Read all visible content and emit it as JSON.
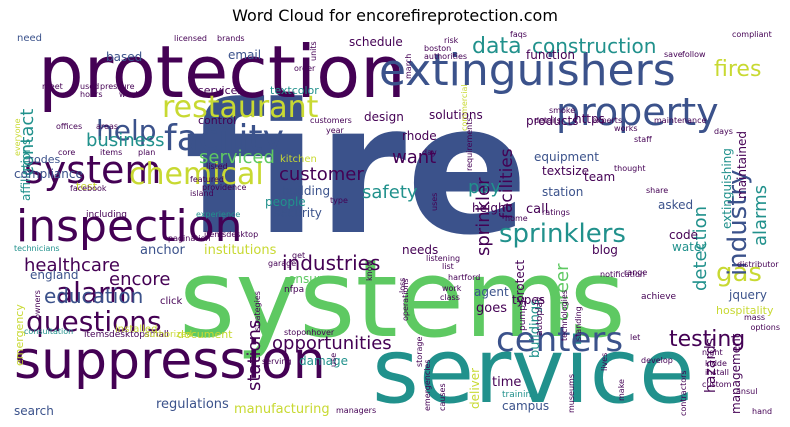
{
  "title": "Word Cloud for encorefireprotection.com",
  "palette": {
    "purple": "#440154",
    "indigo": "#3b528b",
    "teal": "#21918c",
    "green": "#5ec962",
    "yellow": "#c8d932"
  },
  "words": {
    "fire": "fire",
    "systems": "systems",
    "service": "service",
    "protection": "protection",
    "suppression": "suppression",
    "extinguishers": "extinguishers",
    "inspection": "inspection",
    "system": "system",
    "restaurant": "restaurant",
    "property": "property",
    "facility": "facility",
    "chemical": "chemical",
    "centers": "centers",
    "questions": "questions",
    "sprinklers": "sprinklers",
    "alarm": "alarm",
    "help": "help",
    "construction": "construction",
    "data": "data",
    "fires": "fires",
    "industry": "industry",
    "gas": "gas",
    "testing": "testing",
    "opportunities": "opportunities",
    "industries": "industries",
    "education": "education",
    "healthcare": "healthcare",
    "encore": "encore",
    "business": "business",
    "contact": "contact",
    "customer": "customer",
    "serviced": "serviced",
    "safety": "safety",
    "pay": "pay",
    "want": "want",
    "sprinkler": "sprinkler",
    "facilities": "facilities",
    "career": "career",
    "detection": "detection",
    "alarms": "alarms",
    "extinguishing": "extinguishing",
    "maintained": "maintained",
    "stations": "stations",
    "regulations": "regulations",
    "manufacturing": "manufacturing",
    "search": "search",
    "time": "time",
    "campus": "campus",
    "training": "training",
    "hazards": "hazards",
    "management": "management",
    "water": "water",
    "hospitality": "hospitality",
    "jquery": "jquery",
    "code": "code",
    "blog": "blog",
    "asked": "asked",
    "call": "call",
    "station": "station",
    "team": "team",
    "equipment": "equipment",
    "textsize": "textsize",
    "height": "height",
    "needs": "needs",
    "agent": "agent",
    "goes": "goes",
    "types": "types",
    "ensure": "ensure",
    "damage": "damage",
    "document": "document",
    "anchor": "anchor",
    "institutions": "institutions",
    "security": "security",
    "building": "building",
    "people": "people",
    "kitchen": "kitchen",
    "codes": "codes",
    "compliance": "compliance",
    "test": "test",
    "england": "england",
    "affiliations": "affiliations",
    "need": "need",
    "based": "based",
    "email": "email",
    "services": "services",
    "textcolor": "textcolor",
    "control": "control",
    "schedule": "schedule",
    "design": "design",
    "solutions": "solutions",
    "rhode": "rhode",
    "products": "products",
    "https": "https",
    "function": "function",
    "emergency": "emergency",
    "installed": "installed",
    "consultation": "consultation",
    "itemsdesktop": "itemsdesktop",
    "itemsdesktopsmall": "itemsdesktopsmall",
    "authorized": "authorized",
    "managers": "managers",
    "serving": "serving",
    "stoponhover": "stoponhover",
    "pagination": "pagination",
    "technicians": "technicians",
    "experience": "experience",
    "including": "including",
    "click": "click",
    "nfpa": "nfpa",
    "storage": "storage",
    "emergencies": "emergencies",
    "museums": "museums",
    "contractors": "contractors",
    "hand": "hand",
    "ansul": "ansul",
    "custom": "custom",
    "install": "install",
    "kidde": "kidde",
    "night": "night",
    "mass": "mass",
    "options": "options",
    "distributor": "distributor",
    "achieve": "achieve",
    "range": "range",
    "notification": "notification",
    "hartford": "hartford",
    "listening": "listening",
    "technologies": "technologies",
    "standing": "standing",
    "pumps": "pumps",
    "autoplay": "autoplay",
    "work": "work",
    "class": "class",
    "list": "list",
    "protect": "protect",
    "buildings": "buildings",
    "home": "home",
    "ratings": "ratings",
    "share": "share",
    "staff": "staff",
    "works": "works",
    "experts": "experts",
    "maintenance": "maintenance",
    "days": "days",
    "details": "details",
    "smoke": "smoke",
    "thought": "thought",
    "save": "save",
    "follow": "follow",
    "compliant": "compliant",
    "faqs": "faqs",
    "risk": "risk",
    "boston": "boston",
    "authorities": "authorities",
    "licensed": "licensed",
    "brands": "brands",
    "units": "units",
    "order": "order",
    "customers": "customers",
    "year": "year",
    "offices": "offices",
    "areas": "areas",
    "hours": "hours",
    "week": "week",
    "used": "used",
    "pressure": "pressure",
    "meet": "meet",
    "items": "items",
    "plan": "plan",
    "core": "core",
    "listed": "listed",
    "featured": "featured",
    "providence": "providence",
    "island": "island",
    "facebook": "facebook",
    "type": "type",
    "garage": "garage",
    "get": "get",
    "develop": "develop",
    "let": "let",
    "everyone": "everyone",
    "owners": "owners",
    "strategies": "strategies",
    "operations": "operations",
    "loss": "loss",
    "make": "make",
    "causes": "causes",
    "lives": "lives",
    "use": "use",
    "deliver": "deliver",
    "uses": "uses",
    "commercial": "commercial",
    "requirements": "requirements",
    "march": "march",
    "day": "day",
    "know": "know"
  }
}
